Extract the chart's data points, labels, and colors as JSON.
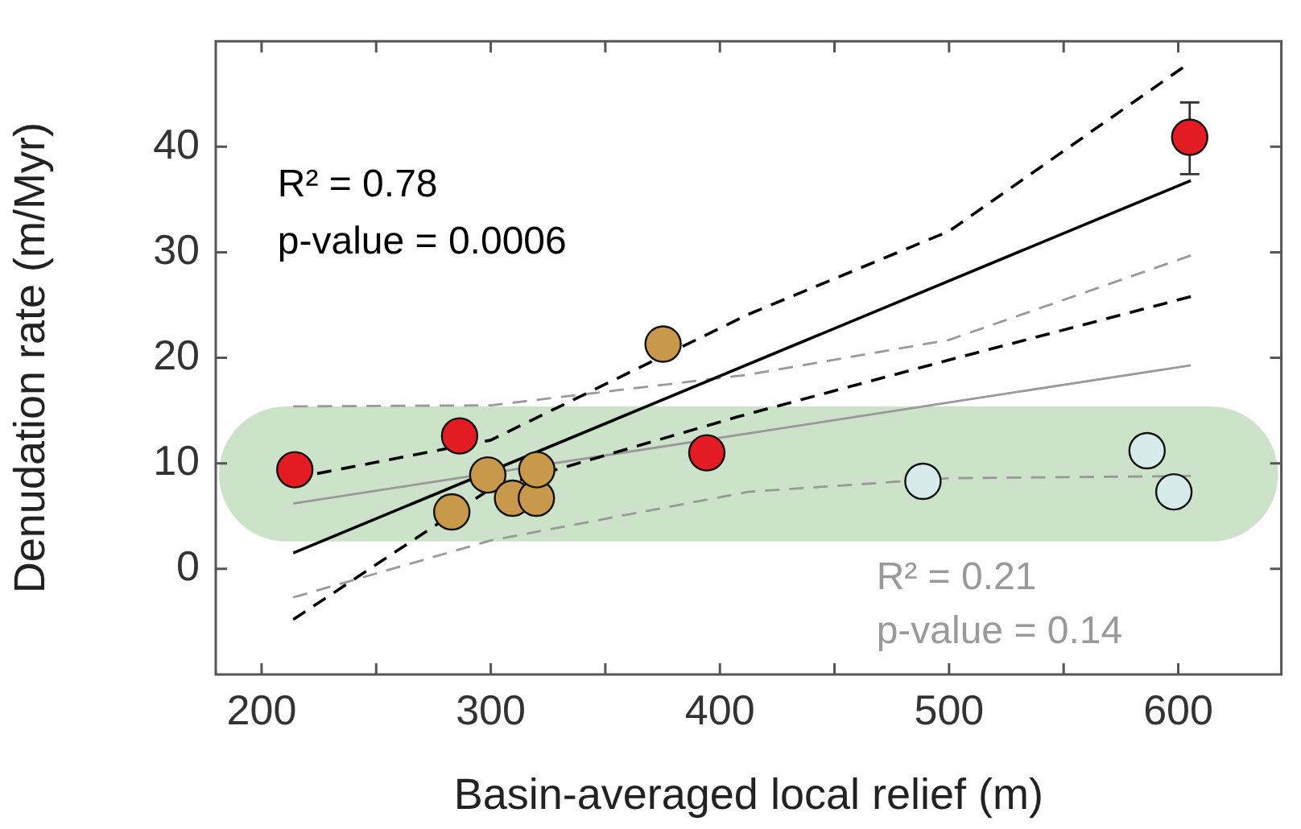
{
  "chart_data": {
    "type": "scatter",
    "xlabel": "Basin-averaged local relief (m)",
    "ylabel": "Denudation rate (m/Myr)",
    "xlim": [
      180,
      645
    ],
    "xticks": [
      200,
      {
        "value": 250,
        "label": null
      },
      300,
      {
        "value": 350,
        "label": null
      },
      400,
      {
        "value": 450,
        "label": null
      },
      500,
      {
        "value": 550,
        "label": null
      },
      600
    ],
    "ylim": [
      -10,
      50
    ],
    "yticks": [
      0,
      10,
      20,
      30,
      40
    ],
    "grid": false,
    "legend": false,
    "marker": "circle",
    "series": [
      {
        "type": "scatter",
        "color": "#e31b23",
        "x": [
          214.5,
          286.4,
          394.3,
          605
        ],
        "values": [
          9.4,
          12.6,
          11.0,
          40.9
        ],
        "errors": [
          null,
          null,
          null,
          [
            37.4,
            44.2
          ]
        ]
      },
      {
        "type": "scatter",
        "color": "#c9994b",
        "x": [
          283,
          298.7,
          309.5,
          319.9,
          320.1,
          375.2
        ],
        "values": [
          5.4,
          8.9,
          6.7,
          6.7,
          9.4,
          21.3
        ]
      },
      {
        "type": "scatter",
        "color": "#d8ebeb",
        "x": [
          488.6,
          586.4,
          598.1
        ],
        "values": [
          8.3,
          11.2,
          7.3
        ]
      },
      {
        "type": "line",
        "marker": "none",
        "color": "#000000",
        "line_style": "solid",
        "x": [
          213.8,
          605.5
        ],
        "values": [
          1.5,
          36.8
        ]
      },
      {
        "type": "line",
        "marker": "none",
        "color": "#000000",
        "line_style": "dashed",
        "x": [
          213.8,
          300,
          412.2,
          500,
          602
        ],
        "values": [
          8.6,
          12.2,
          24.1,
          32.0,
          47.5
        ]
      },
      {
        "type": "line",
        "marker": "none",
        "color": "#000000",
        "line_style": "dashed",
        "x": [
          213.8,
          300,
          407.5,
          500,
          605.5
        ],
        "values": [
          -4.8,
          7.6,
          14.4,
          19.8,
          25.8
        ]
      },
      {
        "type": "line",
        "marker": "none",
        "color": "#999999",
        "line_style": "solid",
        "x": [
          213.8,
          605.5
        ],
        "values": [
          6.2,
          19.3
        ]
      },
      {
        "type": "line",
        "marker": "none",
        "color": "#999999",
        "line_style": "dashed",
        "x": [
          213.8,
          300,
          412.2,
          500,
          605.5
        ],
        "values": [
          15.4,
          15.5,
          18.4,
          21.7,
          29.7
        ]
      },
      {
        "type": "line",
        "marker": "none",
        "color": "#999999",
        "line_style": "dashed",
        "x": [
          213.8,
          300,
          412.2,
          500,
          605.5
        ],
        "values": [
          -2.7,
          2.7,
          7.3,
          8.6,
          8.8
        ]
      }
    ],
    "bands": [
      {
        "axis": "y",
        "from": 2.6,
        "to": 15.4,
        "color": "#cde3c9"
      }
    ],
    "annotations": [
      "R² = 0.78",
      "p-value = 0.0006",
      "R² = 0.21",
      "p-value = 0.14"
    ]
  }
}
